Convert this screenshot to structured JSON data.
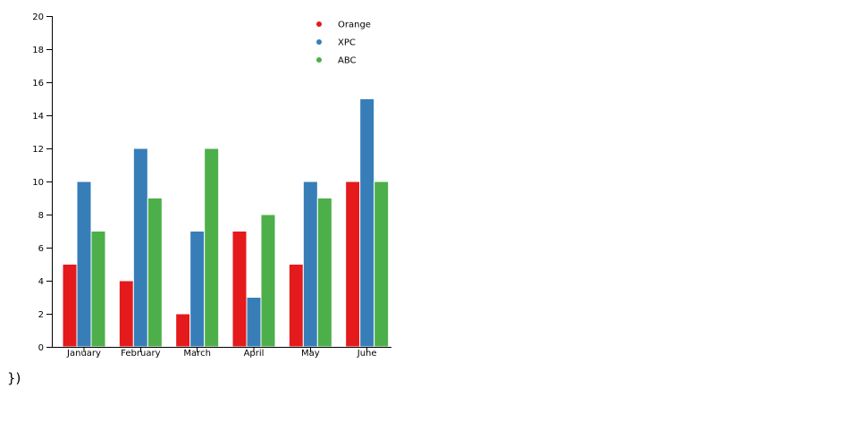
{
  "chart_data": {
    "type": "bar",
    "categories": [
      "January",
      "February",
      "March",
      "April",
      "May",
      "June"
    ],
    "series": [
      {
        "name": "Orange",
        "color": "#e41a1c",
        "values": [
          5,
          4,
          2,
          7,
          5,
          10
        ]
      },
      {
        "name": "XPC",
        "color": "#377eb8",
        "values": [
          10,
          12,
          7,
          3,
          10,
          15
        ]
      },
      {
        "name": "ABC",
        "color": "#4daf4a",
        "values": [
          7,
          9,
          12,
          8,
          9,
          10
        ]
      }
    ],
    "ylim": [
      0,
      20
    ],
    "yticks": [
      "0",
      "2",
      "4",
      "6",
      "8",
      "10",
      "12",
      "14",
      "16",
      "18",
      "20"
    ],
    "grid": false,
    "legend_position": "top-right"
  },
  "footer_text": "})"
}
